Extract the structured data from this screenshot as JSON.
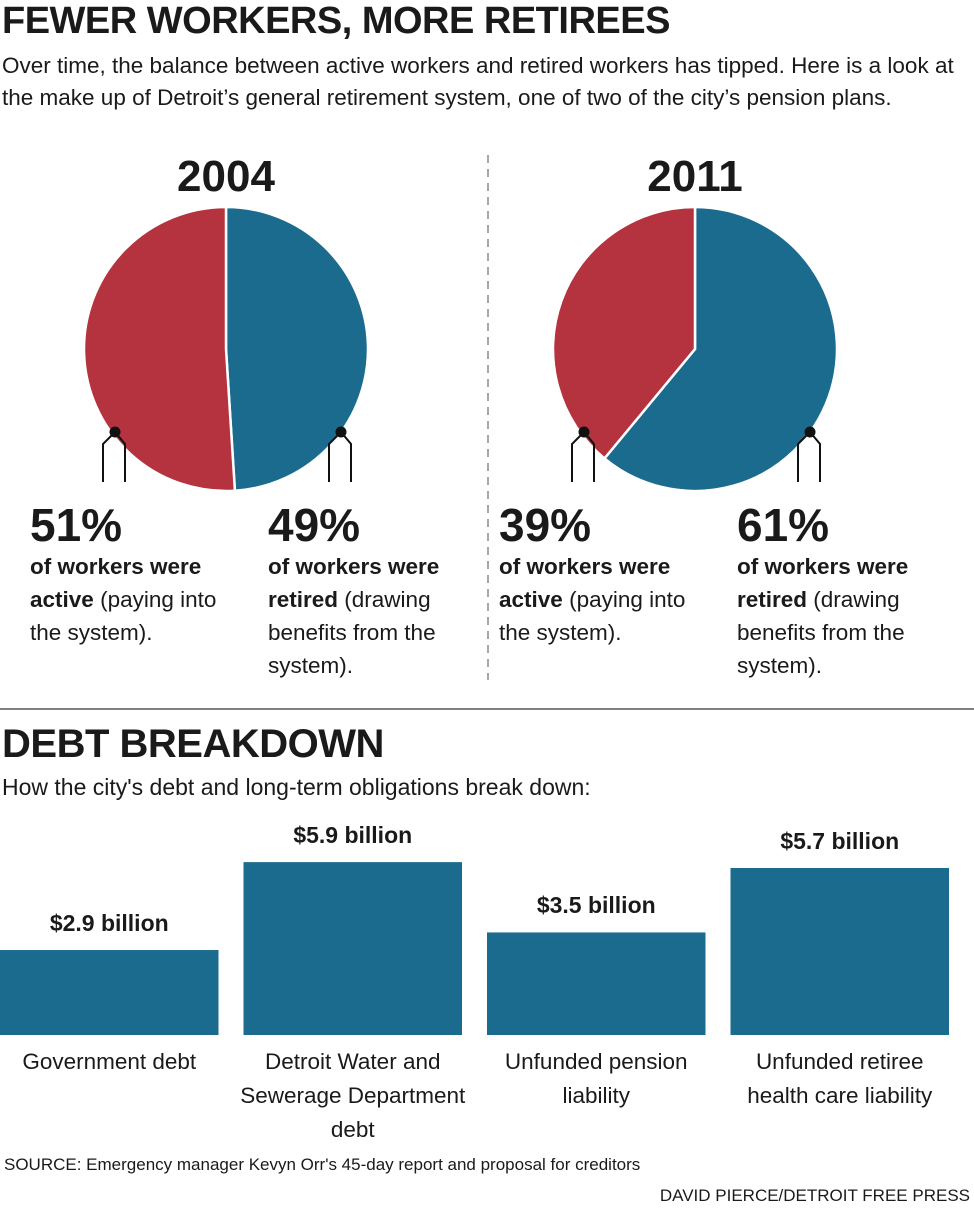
{
  "title": "FEWER WORKERS, MORE RETIREES",
  "subtitle": "Over time, the balance between active workers and retired workers has tipped. Here is a look at the make up of Detroit’s general retirement system, one of two of the city’s pension plans.",
  "source": "SOURCE: Emergency manager Kevyn Orr's 45-day report and proposal for creditors",
  "credit": "DAVID PIERCE/DETROIT FREE PRESS",
  "chart_data": [
    {
      "type": "pie",
      "title": "2004",
      "values": [
        51,
        49
      ],
      "value_labels": [
        "51%",
        "49%"
      ],
      "colors": [
        "#b5323f",
        "#1a6b8e"
      ],
      "descriptions": [
        {
          "bold": "of workers were active",
          "text": "(paying into the system)."
        },
        {
          "bold": "of workers were retired",
          "text": "(drawing benefits from the system)."
        }
      ]
    },
    {
      "type": "pie",
      "title": "2011",
      "values": [
        39,
        61
      ],
      "value_labels": [
        "39%",
        "61%"
      ],
      "colors": [
        "#b5323f",
        "#1a6b8e"
      ],
      "descriptions": [
        {
          "bold": "of workers were active",
          "text": "(paying into the system)."
        },
        {
          "bold": "of workers were retired",
          "text": "(drawing benefits from the system)."
        }
      ]
    },
    {
      "type": "bar",
      "title": "DEBT BREAKDOWN",
      "subtitle": "How the city's debt and long-term obligations break down:",
      "categories": [
        "Government debt",
        "Detroit Water and Sewerage Department debt",
        "Unfunded pension liability",
        "Unfunded retiree health care liability"
      ],
      "values": [
        2.9,
        5.9,
        3.5,
        5.7
      ],
      "value_labels": [
        "$2.9 billion",
        "$5.9 billion",
        "$3.5 billion",
        "$5.7 billion"
      ],
      "color": "#1a6b8e"
    }
  ]
}
